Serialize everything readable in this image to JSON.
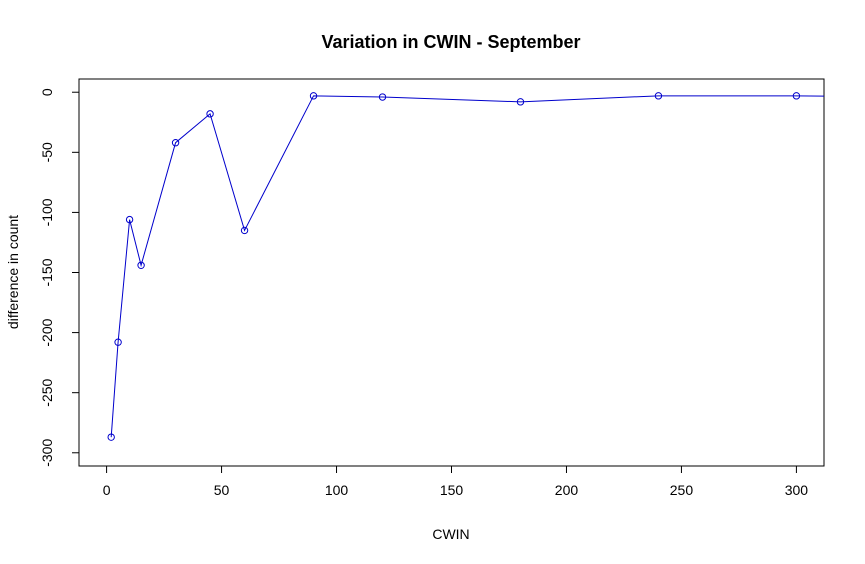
{
  "chart_data": {
    "type": "line",
    "title": "Variation in CWIN - September",
    "xlabel": "CWIN",
    "ylabel": "difference in count",
    "xlim": [
      -12,
      312
    ],
    "ylim": [
      -311,
      11
    ],
    "xticks": [
      0,
      50,
      100,
      150,
      200,
      250,
      300
    ],
    "yticks": [
      0,
      -50,
      -100,
      -150,
      -200,
      -250,
      -300
    ],
    "grid": false,
    "colors": {
      "line": "#0000cc",
      "points": "#0000cc"
    },
    "series": [
      {
        "x": [
          2,
          5,
          10,
          15,
          30,
          45,
          60,
          90,
          120,
          180,
          240,
          300,
          360
        ],
        "y": [
          -287,
          -208,
          -106,
          -144,
          -42,
          -18,
          -115,
          -3,
          -4,
          -8,
          -3,
          -3,
          -4
        ]
      }
    ]
  }
}
